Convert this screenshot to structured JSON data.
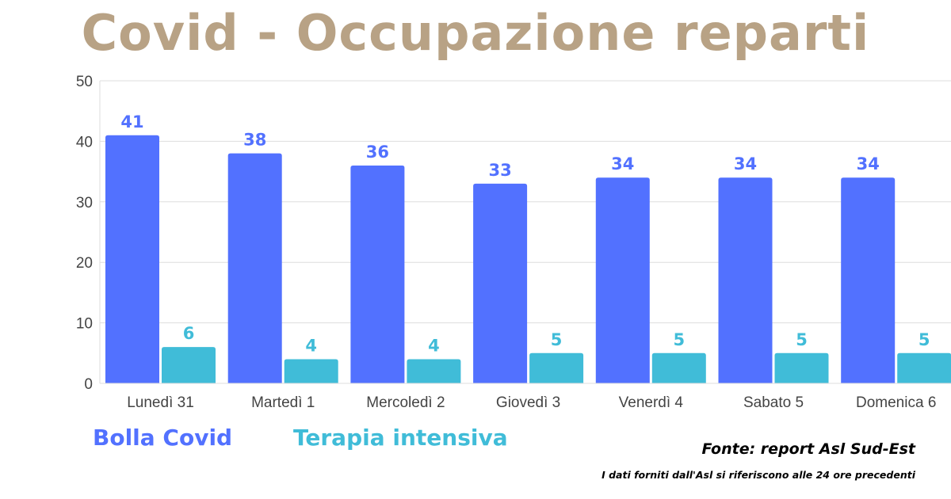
{
  "title": "Covid - Occupazione reparti",
  "legend": {
    "bolla": "Bolla Covid",
    "terapia": "Terapia intensiva"
  },
  "source": "Fonte: report Asl Sud-Est",
  "note": "I dati forniti dall'Asl si riferiscono alle 24 ore precedenti",
  "colors": {
    "title": "#b8a285",
    "bolla": "#5271ff",
    "terapia": "#40bcd8",
    "grid": "#dddddd",
    "axis": "#444444"
  },
  "chart_data": {
    "type": "bar",
    "categories": [
      "Lunedì 31",
      "Martedì 1",
      "Mercoledì 2",
      "Giovedì 3",
      "Venerdì 4",
      "Sabato 5",
      "Domenica 6"
    ],
    "series": [
      {
        "name": "Bolla Covid",
        "values": [
          41,
          38,
          36,
          33,
          34,
          34,
          34
        ]
      },
      {
        "name": "Terapia intensiva",
        "values": [
          6,
          4,
          4,
          5,
          5,
          5,
          5
        ]
      }
    ],
    "ylim": [
      0,
      50
    ],
    "yticks": [
      0,
      10,
      20,
      30,
      40,
      50
    ],
    "grid": true,
    "data_labels": true
  }
}
